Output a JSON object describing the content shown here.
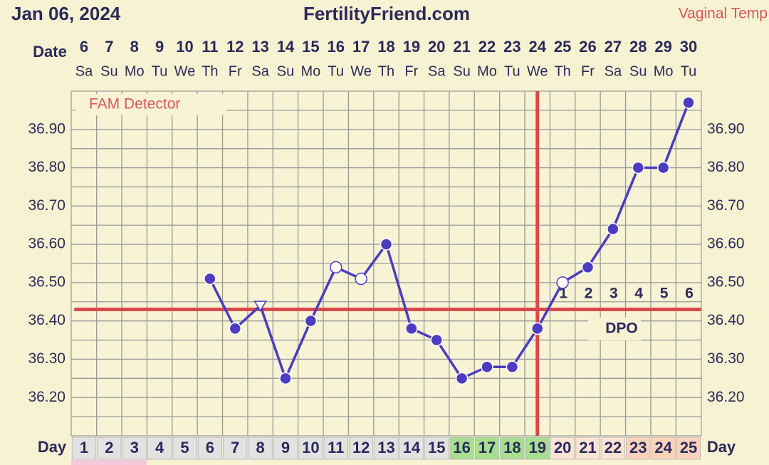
{
  "chart_data": {
    "type": "line",
    "title": "Jan 06, 2024",
    "site": "FertilityFriend.com",
    "temp_type": "Vaginal Temp",
    "date_label": "Date",
    "day_label": "Day",
    "detector_label": "FAM Detector",
    "dpo_label": "DPO",
    "categories": [
      6,
      7,
      8,
      9,
      10,
      11,
      12,
      13,
      14,
      15,
      16,
      17,
      18,
      19,
      20,
      21,
      22,
      23,
      24,
      25,
      26,
      27,
      28,
      29,
      30
    ],
    "weekdays": [
      "Sa",
      "Su",
      "Mo",
      "Tu",
      "We",
      "Th",
      "Fr",
      "Sa",
      "Su",
      "Mo",
      "Tu",
      "We",
      "Th",
      "Fr",
      "Sa",
      "Su",
      "Mo",
      "Tu",
      "We",
      "Th",
      "Fr",
      "Sa",
      "Su",
      "Mo",
      "Tu"
    ],
    "cycle_days": [
      1,
      2,
      3,
      4,
      5,
      6,
      7,
      8,
      9,
      10,
      11,
      12,
      13,
      14,
      15,
      16,
      17,
      18,
      19,
      20,
      21,
      22,
      23,
      24,
      25
    ],
    "day_colors": [
      "#e2e2e2",
      "#e2e2e2",
      "#e2e2e2",
      "#e2e2e2",
      "#e2e2e2",
      "#e2e2e2",
      "#e2e2e2",
      "#e2e2e2",
      "#e2e2e2",
      "#e2e2e2",
      "#e2e2e2",
      "#e2e2e2",
      "#e2e2e2",
      "#e2e2e2",
      "#e2e2e2",
      "#a6df8f",
      "#a6df8f",
      "#a6df8f",
      "#a6df8f",
      "#fde3d2",
      "#fde3d2",
      "#fde3d2",
      "#fcd3b8",
      "#fcd3b8",
      "#fcd3b8"
    ],
    "series": [
      {
        "name": "Vaginal Temp",
        "color": "#4b3cc0",
        "values": [
          null,
          null,
          null,
          null,
          null,
          36.51,
          36.38,
          36.44,
          36.25,
          36.4,
          36.54,
          36.51,
          36.6,
          36.38,
          36.35,
          36.25,
          36.28,
          36.28,
          36.38,
          36.5,
          36.54,
          36.64,
          36.8,
          36.8,
          36.97
        ],
        "markers": [
          null,
          null,
          null,
          null,
          null,
          "filled",
          "filled",
          "triangle",
          "filled",
          "filled",
          "open",
          "open",
          "filled",
          "filled",
          "filled",
          "filled",
          "filled",
          "filled",
          "filled",
          "open",
          "filled",
          "filled",
          "filled",
          "filled",
          "filled"
        ]
      }
    ],
    "dpo": [
      null,
      null,
      null,
      null,
      null,
      null,
      null,
      null,
      null,
      null,
      null,
      null,
      null,
      null,
      null,
      null,
      null,
      null,
      null,
      1,
      2,
      3,
      4,
      5,
      6
    ],
    "coverline": 36.43,
    "coverline_color": "#d9484a",
    "ovulation_day": 19,
    "ylim": [
      36.1,
      37.0
    ],
    "yticks": [
      {
        "value": 36.2,
        "label": "36.20"
      },
      {
        "value": 36.3,
        "label": "36.30"
      },
      {
        "value": 36.4,
        "label": "36.40"
      },
      {
        "value": 36.5,
        "label": "36.50"
      },
      {
        "value": 36.6,
        "label": "36.60"
      },
      {
        "value": 36.7,
        "label": "36.70"
      },
      {
        "value": 36.8,
        "label": "36.80"
      },
      {
        "value": 36.9,
        "label": "36.90"
      }
    ],
    "ygrid": [
      36.15,
      36.2,
      36.25,
      36.3,
      36.35,
      36.4,
      36.45,
      36.5,
      36.55,
      36.6,
      36.65,
      36.7,
      36.75,
      36.8,
      36.85,
      36.9,
      36.95
    ],
    "grid": true
  }
}
